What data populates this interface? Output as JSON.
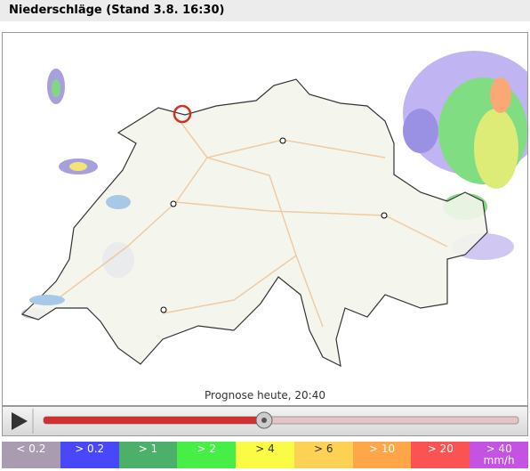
{
  "header": {
    "title": "Niederschläge (Stand 3.8. 16:30)"
  },
  "map": {
    "caption": "Prognose heute, 20:40"
  },
  "legend": {
    "items": [
      {
        "label": "< 0.2",
        "color": "#a99bb0"
      },
      {
        "label": "> 0.2",
        "color": "#4848f8"
      },
      {
        "label": "> 1",
        "color": "#4caf6a"
      },
      {
        "label": "> 2",
        "color": "#46ee46"
      },
      {
        "label": "> 4",
        "color": "#fbfb46"
      },
      {
        "label": "> 6",
        "color": "#fdd254"
      },
      {
        "label": "> 10",
        "color": "#fea648"
      },
      {
        "label": "> 20",
        "color": "#fb5252"
      },
      {
        "label": "> 40",
        "unit": "mm/h",
        "color": "#c452e2"
      }
    ]
  }
}
